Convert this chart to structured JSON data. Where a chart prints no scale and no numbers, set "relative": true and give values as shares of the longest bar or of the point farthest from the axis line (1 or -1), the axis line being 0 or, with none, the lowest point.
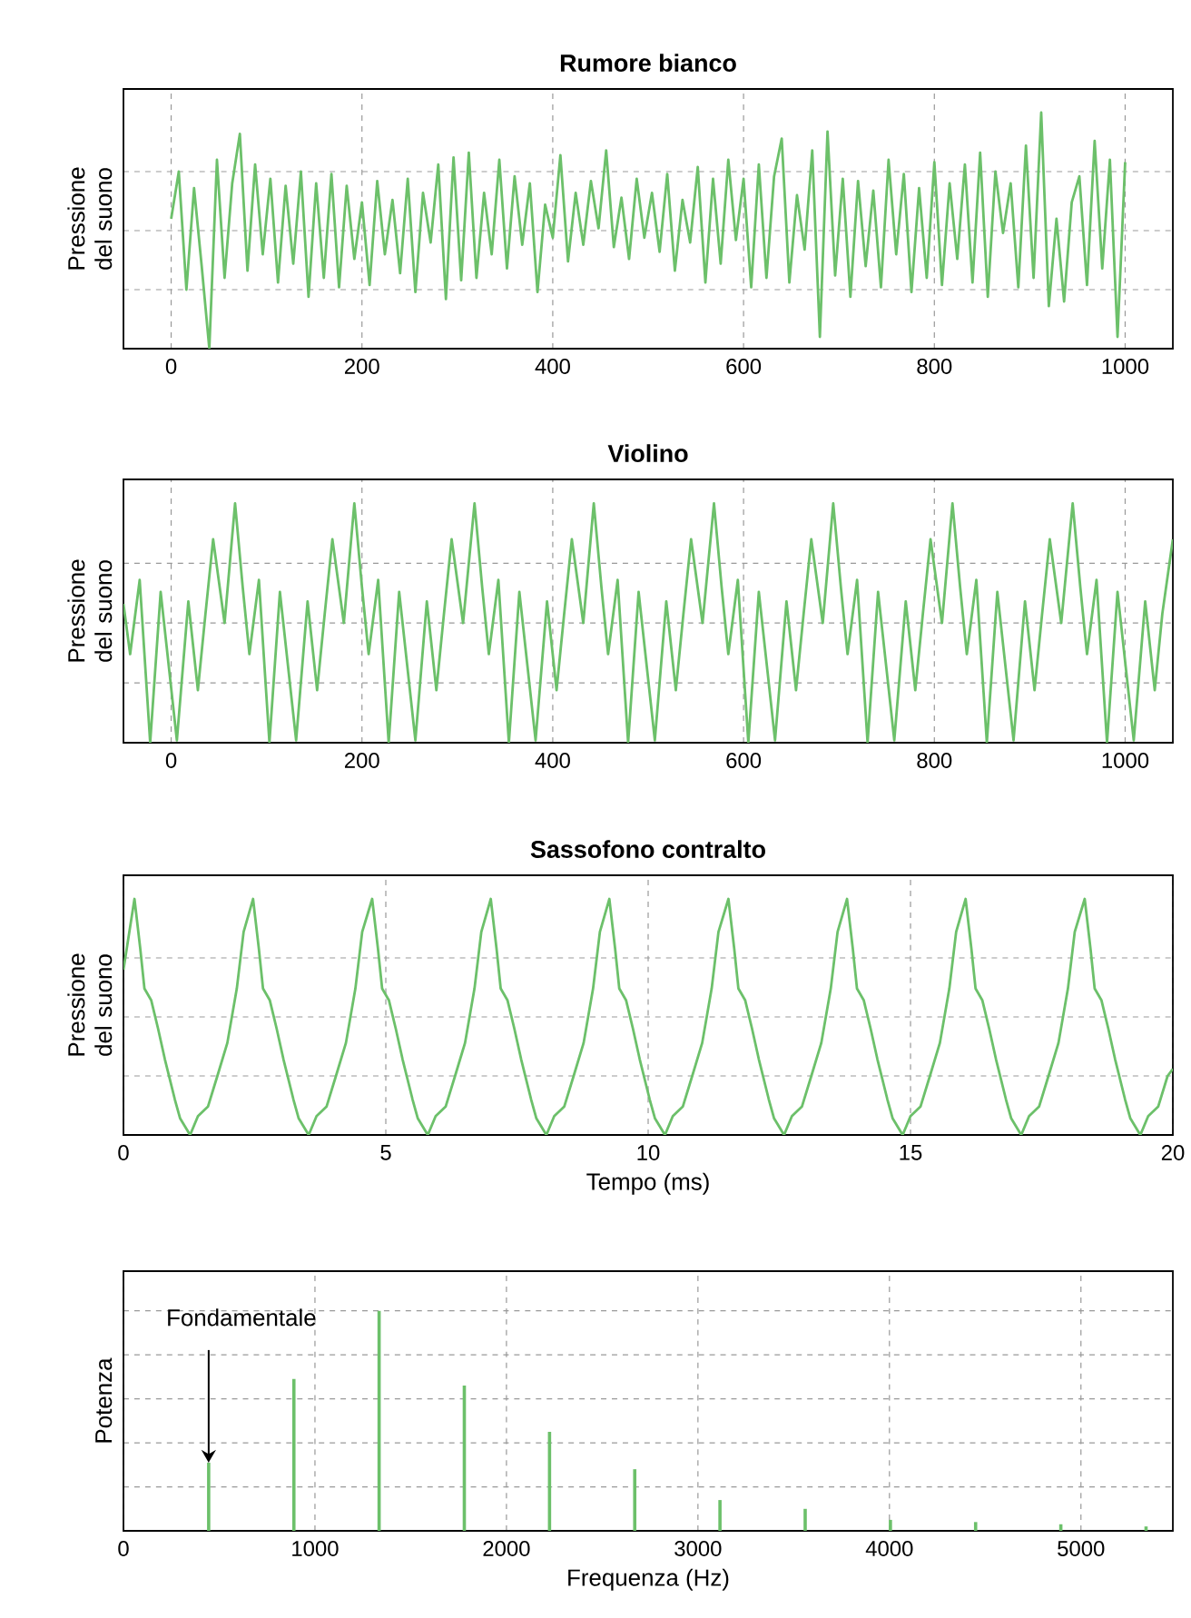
{
  "chart_data": [
    {
      "type": "line",
      "title": "Rumore bianco",
      "ylabel": "Pressione del suono",
      "relative": true,
      "color": "#6cc06a",
      "grid": true,
      "xlim": [
        -50,
        1050
      ],
      "xticks": [
        0,
        200,
        400,
        600,
        800,
        1000
      ],
      "x": [
        0,
        8,
        16,
        24,
        32,
        40,
        48,
        56,
        64,
        72,
        80,
        88,
        96,
        104,
        112,
        120,
        128,
        136,
        144,
        152,
        160,
        168,
        176,
        184,
        192,
        200,
        208,
        216,
        224,
        232,
        240,
        248,
        256,
        264,
        272,
        280,
        288,
        296,
        304,
        312,
        320,
        328,
        336,
        344,
        352,
        360,
        368,
        376,
        384,
        392,
        400,
        408,
        416,
        424,
        432,
        440,
        448,
        456,
        464,
        472,
        480,
        488,
        496,
        504,
        512,
        520,
        528,
        536,
        544,
        552,
        560,
        568,
        576,
        584,
        592,
        600,
        608,
        616,
        624,
        632,
        640,
        648,
        656,
        664,
        672,
        680,
        688,
        696,
        704,
        712,
        720,
        728,
        736,
        744,
        752,
        760,
        768,
        776,
        784,
        792,
        800,
        808,
        816,
        824,
        832,
        840,
        848,
        856,
        864,
        872,
        880,
        888,
        896,
        904,
        912,
        920,
        928,
        936,
        944,
        952,
        960,
        968,
        976,
        984,
        992,
        1000
      ],
      "values": [
        0.55,
        0.75,
        0.25,
        0.68,
        0.35,
        0.0,
        0.8,
        0.3,
        0.7,
        0.91,
        0.33,
        0.78,
        0.4,
        0.72,
        0.28,
        0.69,
        0.36,
        0.75,
        0.22,
        0.7,
        0.3,
        0.74,
        0.26,
        0.69,
        0.38,
        0.62,
        0.27,
        0.71,
        0.4,
        0.63,
        0.32,
        0.72,
        0.24,
        0.66,
        0.45,
        0.78,
        0.21,
        0.81,
        0.29,
        0.83,
        0.3,
        0.66,
        0.4,
        0.8,
        0.34,
        0.73,
        0.44,
        0.7,
        0.24,
        0.61,
        0.47,
        0.82,
        0.37,
        0.66,
        0.44,
        0.71,
        0.51,
        0.84,
        0.43,
        0.64,
        0.38,
        0.72,
        0.47,
        0.66,
        0.41,
        0.74,
        0.33,
        0.63,
        0.45,
        0.77,
        0.28,
        0.72,
        0.36,
        0.8,
        0.46,
        0.72,
        0.26,
        0.78,
        0.3,
        0.73,
        0.89,
        0.28,
        0.65,
        0.42,
        0.84,
        0.05,
        0.92,
        0.31,
        0.72,
        0.22,
        0.71,
        0.35,
        0.67,
        0.26,
        0.8,
        0.4,
        0.74,
        0.24,
        0.68,
        0.3,
        0.79,
        0.27,
        0.7,
        0.38,
        0.78,
        0.28,
        0.83,
        0.22,
        0.75,
        0.49,
        0.7,
        0.26,
        0.86,
        0.3,
        1.0,
        0.18,
        0.55,
        0.2,
        0.62,
        0.73,
        0.27,
        0.88,
        0.34,
        0.8,
        0.05,
        0.79
      ]
    },
    {
      "type": "line",
      "title": "Violino",
      "ylabel": "Pressione del suono",
      "relative": true,
      "color": "#6cc06a",
      "grid": true,
      "xlim": [
        -50,
        1050
      ],
      "xticks": [
        0,
        200,
        400,
        600,
        800,
        1000
      ],
      "x": [
        -50,
        -43,
        -33,
        -22,
        -11,
        6,
        18,
        28,
        36,
        44,
        56,
        67,
        75,
        82,
        92,
        103,
        114,
        131,
        143,
        153,
        161,
        169,
        181,
        192,
        200,
        207,
        217,
        228,
        239,
        256,
        268,
        278,
        286,
        294,
        306,
        318,
        326,
        333,
        343,
        354,
        365,
        382,
        394,
        404,
        412,
        420,
        432,
        443,
        451,
        458,
        468,
        479,
        490,
        507,
        519,
        529,
        537,
        545,
        557,
        569,
        577,
        584,
        594,
        605,
        616,
        633,
        645,
        655,
        663,
        671,
        683,
        694,
        702,
        709,
        719,
        730,
        741,
        758,
        770,
        780,
        788,
        796,
        808,
        819,
        827,
        834,
        844,
        855,
        866,
        883,
        895,
        905,
        913,
        921,
        933,
        945,
        953,
        960,
        970,
        981,
        992,
        1009,
        1021,
        1031,
        1039,
        1050
      ],
      "values": [
        0.58,
        0.37,
        0.68,
        0.0,
        0.63,
        0.01,
        0.59,
        0.22,
        0.54,
        0.85,
        0.5,
        1.0,
        0.65,
        0.37,
        0.68,
        0.0,
        0.63,
        0.01,
        0.59,
        0.22,
        0.54,
        0.85,
        0.5,
        1.0,
        0.65,
        0.37,
        0.68,
        0.0,
        0.63,
        0.01,
        0.59,
        0.22,
        0.54,
        0.85,
        0.5,
        1.0,
        0.65,
        0.37,
        0.68,
        0.0,
        0.63,
        0.01,
        0.59,
        0.22,
        0.54,
        0.85,
        0.5,
        1.0,
        0.65,
        0.37,
        0.68,
        0.0,
        0.63,
        0.01,
        0.59,
        0.22,
        0.54,
        0.85,
        0.5,
        1.0,
        0.65,
        0.37,
        0.68,
        0.0,
        0.63,
        0.01,
        0.59,
        0.22,
        0.54,
        0.85,
        0.5,
        1.0,
        0.65,
        0.37,
        0.68,
        0.0,
        0.63,
        0.01,
        0.59,
        0.22,
        0.54,
        0.85,
        0.5,
        1.0,
        0.65,
        0.37,
        0.68,
        0.0,
        0.63,
        0.01,
        0.59,
        0.22,
        0.54,
        0.85,
        0.5,
        1.0,
        0.65,
        0.37,
        0.68,
        0.0,
        0.63,
        0.01,
        0.59,
        0.22,
        0.54,
        0.85
      ]
    },
    {
      "type": "line",
      "title": "Sassofono contralto",
      "ylabel": "Pressione del suono",
      "xlabel": "Tempo (ms)",
      "relative": true,
      "color": "#6cc06a",
      "grid": true,
      "xlim": [
        0,
        20
      ],
      "xticks": [
        0,
        5,
        10,
        15,
        20
      ],
      "x": [
        0,
        0.21,
        0.32,
        0.4,
        0.53,
        0.66,
        0.79,
        0.98,
        1.08,
        1.27,
        1.42,
        1.61,
        1.79,
        1.98,
        2.16,
        2.29,
        2.47,
        2.58,
        2.66,
        2.79,
        2.92,
        3.05,
        3.24,
        3.34,
        3.53,
        3.68,
        3.87,
        4.05,
        4.24,
        4.42,
        4.55,
        4.74,
        4.85,
        4.93,
        5.06,
        5.19,
        5.32,
        5.51,
        5.61,
        5.8,
        5.95,
        6.14,
        6.32,
        6.51,
        6.69,
        6.82,
        7.0,
        7.11,
        7.19,
        7.32,
        7.45,
        7.58,
        7.77,
        7.87,
        8.06,
        8.21,
        8.4,
        8.58,
        8.77,
        8.95,
        9.08,
        9.26,
        9.37,
        9.45,
        9.58,
        9.71,
        9.84,
        10.03,
        10.13,
        10.32,
        10.47,
        10.66,
        10.84,
        11.03,
        11.21,
        11.34,
        11.53,
        11.64,
        11.72,
        11.85,
        11.98,
        12.11,
        12.3,
        12.4,
        12.59,
        12.74,
        12.93,
        13.11,
        13.3,
        13.48,
        13.61,
        13.79,
        13.9,
        13.98,
        14.11,
        14.24,
        14.37,
        14.56,
        14.66,
        14.85,
        15.0,
        15.19,
        15.37,
        15.56,
        15.74,
        15.87,
        16.05,
        16.16,
        16.24,
        16.37,
        16.5,
        16.63,
        16.82,
        16.92,
        17.11,
        17.26,
        17.45,
        17.63,
        17.82,
        18.0,
        18.13,
        18.32,
        18.43,
        18.51,
        18.64,
        18.77,
        18.9,
        19.09,
        19.19,
        19.38,
        19.53,
        19.72,
        19.9,
        20
      ],
      "values": [
        0.7,
        1.0,
        0.79,
        0.62,
        0.57,
        0.45,
        0.32,
        0.15,
        0.07,
        0.0,
        0.08,
        0.12,
        0.25,
        0.39,
        0.62,
        0.86,
        1.0,
        0.79,
        0.62,
        0.57,
        0.45,
        0.32,
        0.15,
        0.07,
        0.0,
        0.08,
        0.12,
        0.25,
        0.39,
        0.62,
        0.86,
        1.0,
        0.79,
        0.62,
        0.57,
        0.45,
        0.32,
        0.15,
        0.07,
        0.0,
        0.08,
        0.12,
        0.25,
        0.39,
        0.62,
        0.86,
        1.0,
        0.79,
        0.62,
        0.57,
        0.45,
        0.32,
        0.15,
        0.07,
        0.0,
        0.08,
        0.12,
        0.25,
        0.39,
        0.62,
        0.86,
        1.0,
        0.79,
        0.62,
        0.57,
        0.45,
        0.32,
        0.15,
        0.07,
        0.0,
        0.08,
        0.12,
        0.25,
        0.39,
        0.62,
        0.86,
        1.0,
        0.79,
        0.62,
        0.57,
        0.45,
        0.32,
        0.15,
        0.07,
        0.0,
        0.08,
        0.12,
        0.25,
        0.39,
        0.62,
        0.86,
        1.0,
        0.79,
        0.62,
        0.57,
        0.45,
        0.32,
        0.15,
        0.07,
        0.0,
        0.08,
        0.12,
        0.25,
        0.39,
        0.62,
        0.86,
        1.0,
        0.79,
        0.62,
        0.57,
        0.45,
        0.32,
        0.15,
        0.07,
        0.0,
        0.08,
        0.12,
        0.25,
        0.39,
        0.62,
        0.86,
        1.0,
        0.79,
        0.62,
        0.57,
        0.45,
        0.32,
        0.15,
        0.07,
        0.0,
        0.08,
        0.12,
        0.25,
        0.28
      ]
    },
    {
      "type": "bar",
      "ylabel": "Potenza",
      "xlabel": "Frequenza (Hz)",
      "relative": true,
      "color": "#6cc06a",
      "grid": true,
      "xlim": [
        0,
        5480
      ],
      "xticks": [
        0,
        1000,
        2000,
        3000,
        4000,
        5000
      ],
      "x": [
        445,
        890,
        1335,
        1780,
        2225,
        2670,
        3115,
        3560,
        4005,
        4450,
        4895,
        5340
      ],
      "values": [
        0.31,
        0.69,
        1.0,
        0.66,
        0.45,
        0.28,
        0.14,
        0.1,
        0.05,
        0.04,
        0.03,
        0.02
      ],
      "annotations": [
        {
          "text": "Fondamentale",
          "x": 445,
          "y": 0.31
        }
      ]
    }
  ]
}
